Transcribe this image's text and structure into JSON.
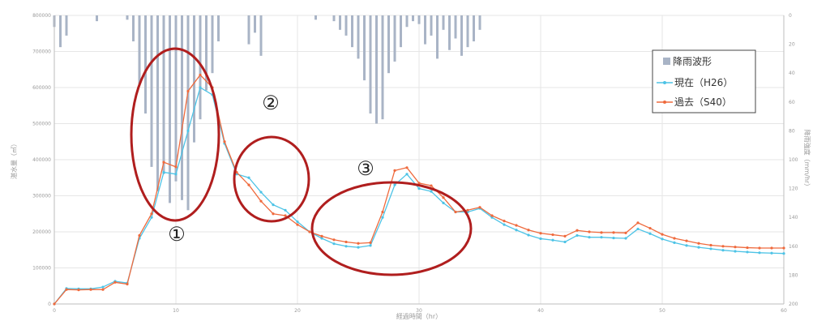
{
  "chart_data": {
    "type": "line",
    "title": "",
    "xlabel": "経過時間（hr）",
    "ylabel_left": "湛水量（㎥）",
    "ylabel_right": "降雨強度（mm/hr）",
    "xlim": [
      0,
      60
    ],
    "ylim_left": [
      0,
      800000
    ],
    "ylim_right": [
      0,
      200
    ],
    "right_axis_inverted": true,
    "grid": true,
    "legend_position": "top-right",
    "x_ticks": [
      "0",
      "10",
      "20",
      "30",
      "40",
      "50",
      "60"
    ],
    "y_left_ticks": [
      "0",
      "100000",
      "200000",
      "300000",
      "400000",
      "500000",
      "600000",
      "700000",
      "800000"
    ],
    "y_right_ticks": [
      "0",
      "20",
      "40",
      "60",
      "80",
      "100",
      "120",
      "140",
      "160",
      "180",
      "200"
    ],
    "colors": {
      "rainfall": "#a9b4c6",
      "current": "#4dc3e6",
      "past": "#ef6a3d",
      "ellipse": "#b01e1e",
      "grid": "#e6e6e6"
    },
    "series": [
      {
        "name": "現在（H26）",
        "x": [
          0,
          1,
          2,
          3,
          4,
          5,
          6,
          7,
          8,
          9,
          10,
          11,
          12,
          13,
          14,
          15,
          16,
          17,
          18,
          19,
          20,
          21,
          22,
          23,
          24,
          25,
          26,
          27,
          28,
          29,
          30,
          31,
          32,
          33,
          34,
          35,
          36,
          37,
          38,
          39,
          40,
          41,
          42,
          43,
          44,
          45,
          46,
          47,
          48,
          49,
          50,
          51,
          52,
          53,
          54,
          55,
          56,
          57,
          58,
          59,
          60
        ],
        "y": [
          0,
          43000,
          42000,
          42000,
          47000,
          63000,
          58000,
          182000,
          240000,
          365000,
          360000,
          480000,
          600000,
          580000,
          445000,
          360000,
          350000,
          310000,
          275000,
          260000,
          228000,
          200000,
          182000,
          167000,
          160000,
          157000,
          162000,
          240000,
          330000,
          360000,
          320000,
          312000,
          280000,
          255000,
          255000,
          265000,
          240000,
          220000,
          205000,
          191000,
          181000,
          177000,
          172000,
          190000,
          185000,
          185000,
          183000,
          182000,
          208000,
          195000,
          180000,
          170000,
          162000,
          157000,
          153000,
          149000,
          146000,
          144000,
          142000,
          141000,
          140000
        ]
      },
      {
        "name": "過去（S40）",
        "x": [
          0,
          1,
          2,
          3,
          4,
          5,
          6,
          7,
          8,
          9,
          10,
          11,
          12,
          13,
          14,
          15,
          16,
          17,
          18,
          19,
          20,
          21,
          22,
          23,
          24,
          25,
          26,
          27,
          28,
          29,
          30,
          31,
          32,
          33,
          34,
          35,
          36,
          37,
          38,
          39,
          40,
          41,
          42,
          43,
          44,
          45,
          46,
          47,
          48,
          49,
          50,
          51,
          52,
          53,
          54,
          55,
          56,
          57,
          58,
          59,
          60
        ],
        "y": [
          0,
          40000,
          39000,
          40000,
          40000,
          60000,
          55000,
          190000,
          250000,
          393000,
          380000,
          590000,
          635000,
          600000,
          450000,
          365000,
          330000,
          285000,
          250000,
          245000,
          220000,
          200000,
          188000,
          178000,
          172000,
          168000,
          170000,
          255000,
          370000,
          378000,
          335000,
          328000,
          295000,
          255000,
          260000,
          268000,
          245000,
          230000,
          218000,
          205000,
          196000,
          192000,
          188000,
          204000,
          200000,
          198000,
          198000,
          197000,
          225000,
          210000,
          193000,
          182000,
          175000,
          168000,
          163000,
          160000,
          158000,
          156000,
          155000,
          155000,
          155000
        ]
      },
      {
        "name": "降雨波形",
        "kind": "bar_inverted_right_axis",
        "x": [
          0,
          0.5,
          1,
          1.5,
          2,
          2.5,
          3,
          3.5,
          4,
          4.5,
          5,
          5.5,
          6,
          6.5,
          7,
          7.5,
          8,
          8.5,
          9,
          9.5,
          10,
          10.5,
          11,
          11.5,
          12,
          12.5,
          13,
          13.5,
          14,
          14.5,
          15,
          15.5,
          16,
          16.5,
          17,
          17.5,
          18,
          18.5,
          19,
          19.5,
          20,
          20.5,
          21,
          21.5,
          22,
          22.5,
          23,
          23.5,
          24,
          24.5,
          25,
          25.5,
          26,
          26.5,
          27,
          27.5,
          28,
          28.5,
          29,
          29.5,
          30,
          30.5,
          31,
          31.5,
          32,
          32.5,
          33,
          33.5,
          34,
          34.5,
          35,
          35.5,
          36,
          36.5,
          37,
          37.5,
          38,
          38.5,
          39,
          39.5,
          40,
          40.5,
          41,
          41.5,
          42,
          42.5,
          43,
          43.5,
          44,
          44.5,
          45,
          45.5,
          46,
          46.5,
          47,
          47.5,
          48,
          48.5,
          49,
          49.5,
          50
        ],
        "values": [
          8,
          22,
          14,
          0,
          0,
          0,
          0,
          4,
          0,
          0,
          0,
          0,
          3,
          18,
          48,
          68,
          105,
          122,
          110,
          130,
          115,
          128,
          135,
          88,
          72,
          52,
          40,
          18,
          0,
          0,
          0,
          0,
          20,
          12,
          28,
          0,
          0,
          0,
          0,
          0,
          0,
          0,
          0,
          3,
          0,
          0,
          4,
          10,
          14,
          22,
          30,
          45,
          68,
          75,
          72,
          40,
          32,
          22,
          8,
          4,
          6,
          20,
          14,
          30,
          10,
          24,
          16,
          28,
          22,
          18,
          10,
          0,
          0,
          0,
          0,
          0,
          0,
          0,
          0,
          0,
          0,
          0,
          0,
          0,
          0,
          0,
          0,
          0,
          0,
          0,
          0,
          0,
          0,
          0,
          0,
          0,
          0,
          0,
          0,
          0,
          0
        ]
      }
    ],
    "annotations": [
      "①",
      "②",
      "③"
    ]
  }
}
